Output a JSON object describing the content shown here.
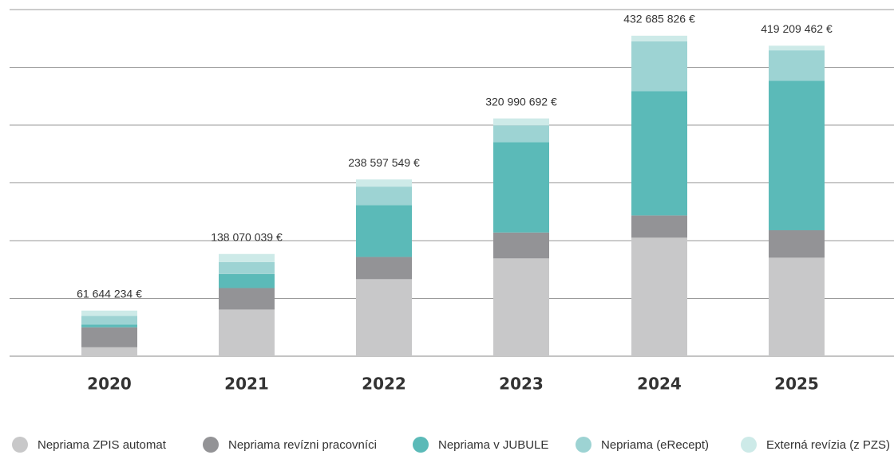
{
  "chart_data": {
    "type": "stacked_bar",
    "categories": [
      "2020",
      "2021",
      "2022",
      "2023",
      "2024",
      "2025"
    ],
    "series": [
      {
        "name": "Nepriama ZPIS automat",
        "color": "#c8c8c9",
        "values": [
          12000000,
          63000000,
          104000000,
          132000000,
          160000000,
          133000000
        ]
      },
      {
        "name": "Nepriama revízni pracovníci",
        "color": "#939396",
        "values": [
          27000000,
          29000000,
          30000000,
          35000000,
          30000000,
          37000000
        ]
      },
      {
        "name": "Nepriama v JUBULE",
        "color": "#5bbab8",
        "values": [
          3500000,
          19000000,
          70000000,
          122000000,
          168000000,
          202000000
        ]
      },
      {
        "name": "Nepriama (eRecept)",
        "color": "#9dd3d3",
        "values": [
          12000000,
          16000000,
          25000000,
          22600000,
          67000000,
          41000000
        ]
      },
      {
        "name": "Externá revízia (z PZS)",
        "color": "#cdeae8",
        "values": [
          7100000,
          11000000,
          9600000,
          9400000,
          7700000,
          6200000
        ]
      }
    ],
    "totals": [
      61644234,
      138070039,
      238597549,
      320990692,
      432685826,
      419209462
    ],
    "totals_labels": [
      "61 644 234 €",
      "138 070 039 €",
      "238 597 549 €",
      "320 990 692 €",
      "432 685 826 €",
      "419 209 462 €"
    ],
    "ylim": [
      0,
      468000000
    ],
    "yticks": [
      0,
      78000000,
      156000000,
      234000000,
      312000000,
      390000000,
      468000000
    ],
    "grid": true
  }
}
